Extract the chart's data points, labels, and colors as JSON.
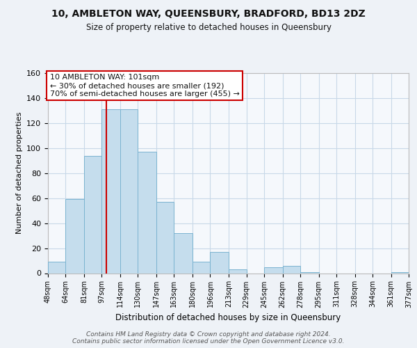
{
  "title": "10, AMBLETON WAY, QUEENSBURY, BRADFORD, BD13 2DZ",
  "subtitle": "Size of property relative to detached houses in Queensbury",
  "xlabel": "Distribution of detached houses by size in Queensbury",
  "ylabel": "Number of detached properties",
  "bar_color": "#c5dded",
  "bar_edge_color": "#7ab3d0",
  "background_color": "#eef2f7",
  "plot_bg_color": "#f5f8fc",
  "grid_color": "#c8d8e8",
  "vline_x": 101,
  "vline_color": "#cc0000",
  "annotation_text": "10 AMBLETON WAY: 101sqm\n← 30% of detached houses are smaller (192)\n70% of semi-detached houses are larger (455) →",
  "annotation_box_color": "#ffffff",
  "annotation_box_edge": "#cc0000",
  "footer_text": "Contains HM Land Registry data © Crown copyright and database right 2024.\nContains public sector information licensed under the Open Government Licence v3.0.",
  "bin_edges": [
    48,
    64,
    81,
    97,
    114,
    130,
    147,
    163,
    180,
    196,
    213,
    229,
    245,
    262,
    278,
    295,
    311,
    328,
    344,
    361,
    377
  ],
  "counts": [
    9,
    59,
    94,
    131,
    131,
    97,
    57,
    32,
    9,
    17,
    3,
    0,
    5,
    6,
    1,
    0,
    0,
    0,
    0,
    1
  ],
  "ylim": [
    0,
    160
  ],
  "yticks": [
    0,
    20,
    40,
    60,
    80,
    100,
    120,
    140,
    160
  ],
  "tick_labels": [
    "48sqm",
    "64sqm",
    "81sqm",
    "97sqm",
    "114sqm",
    "130sqm",
    "147sqm",
    "163sqm",
    "180sqm",
    "196sqm",
    "213sqm",
    "229sqm",
    "245sqm",
    "262sqm",
    "278sqm",
    "295sqm",
    "311sqm",
    "328sqm",
    "344sqm",
    "361sqm",
    "377sqm"
  ]
}
